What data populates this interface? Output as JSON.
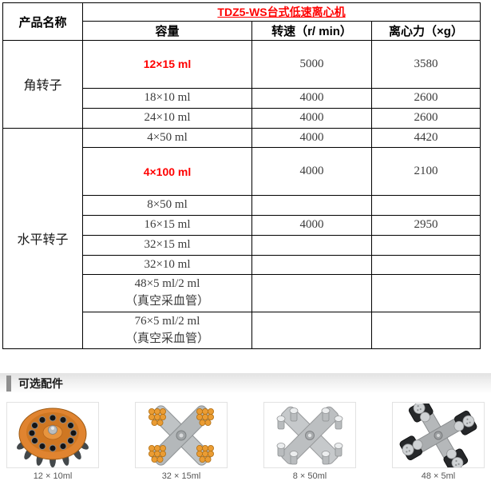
{
  "header": {
    "product_name_label": "产品名称",
    "product_title": "TDZ5-WS台式低速离心机",
    "columns": {
      "capacity": "容量",
      "speed": "转速（r/ min）",
      "force": "离心力（×g）"
    }
  },
  "sections": [
    {
      "name": "角转子",
      "rows": [
        {
          "capacity": "12×15 ml",
          "speed": "5000",
          "force": "3580",
          "highlight": true
        },
        {
          "capacity": "18×10 ml",
          "speed": "4000",
          "force": "2600"
        },
        {
          "capacity": "24×10 ml",
          "speed": "4000",
          "force": "2600"
        }
      ]
    },
    {
      "name": "水平转子",
      "rows": [
        {
          "capacity": "4×50 ml",
          "speed": "4000",
          "force": "4420"
        },
        {
          "capacity": "4×100 ml",
          "speed": "4000",
          "force": "2100",
          "highlight": true
        },
        {
          "capacity": "8×50 ml",
          "speed": "",
          "force": ""
        },
        {
          "capacity": "16×15 ml",
          "speed": "4000",
          "force": "2950"
        },
        {
          "capacity": "32×15 ml",
          "speed": "",
          "force": ""
        },
        {
          "capacity": "32×10 ml",
          "speed": "",
          "force": ""
        },
        {
          "capacity": "48×5 ml/2 ml\n（真空采血管）",
          "speed": "",
          "force": ""
        },
        {
          "capacity": "76×5 ml/2 ml\n（真空采血管）",
          "speed": "",
          "force": ""
        }
      ]
    }
  ],
  "accessories": {
    "section_title": "可选配件",
    "items": [
      {
        "caption": "12 × 10ml",
        "icon": "angle-rotor-orange-icon"
      },
      {
        "caption": "32 × 15ml",
        "icon": "swing-rotor-orange-tubes-icon"
      },
      {
        "caption": "8 × 50ml",
        "icon": "swing-rotor-white-tubes-icon"
      },
      {
        "caption": "48 × 5ml",
        "icon": "swing-rotor-black-icon"
      }
    ]
  },
  "colors": {
    "accent_red": "#ff0000",
    "table_border": "#000000",
    "rotor_orange": "#e08430",
    "section_bar_gray": "#8f8f8f"
  }
}
